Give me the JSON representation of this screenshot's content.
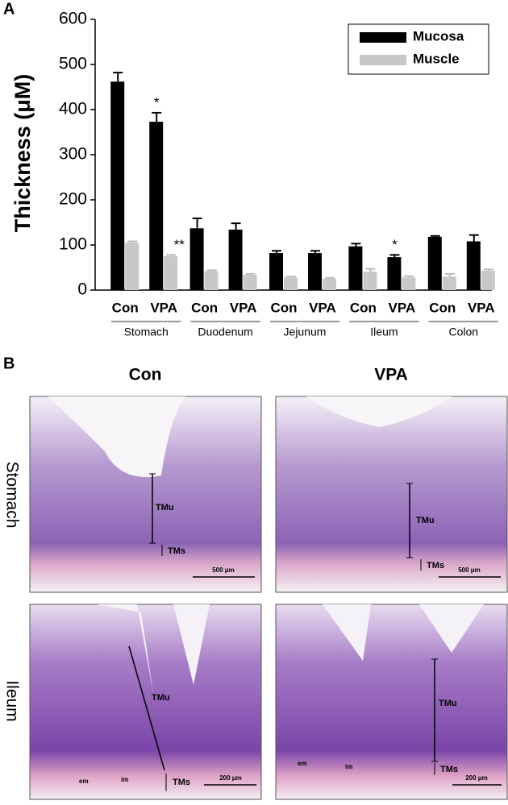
{
  "panel_a_label": "A",
  "panel_b_label": "B",
  "chart_data": {
    "type": "bar",
    "ylabel": "Thickness (μM)",
    "categories": [
      "Con",
      "VPA",
      "Con",
      "VPA",
      "Con",
      "VPA",
      "Con",
      "VPA",
      "Con",
      "VPA"
    ],
    "groups": [
      "Stomach",
      "Duodenum",
      "Jejunum",
      "Ileum",
      "Colon"
    ],
    "series": [
      {
        "name": "Mucosa",
        "color": "#000000",
        "values": [
          462,
          373,
          137,
          134,
          82,
          82,
          97,
          73,
          118,
          108
        ],
        "errors": [
          20,
          20,
          22,
          14,
          5,
          5,
          6,
          5,
          2,
          14
        ],
        "marks": [
          null,
          "*",
          null,
          null,
          null,
          null,
          null,
          "*",
          null,
          null
        ]
      },
      {
        "name": "Muscle",
        "color": "#c8c8c8",
        "values": [
          105,
          75,
          42,
          34,
          28,
          25,
          41,
          28,
          30,
          43
        ],
        "errors": [
          3,
          3,
          2,
          2,
          2,
          2,
          6,
          3,
          6,
          3
        ],
        "marks": [
          null,
          "**",
          null,
          null,
          null,
          null,
          null,
          null,
          null,
          null
        ]
      }
    ],
    "ylim": [
      0,
      600
    ],
    "yticks": [
      0,
      100,
      200,
      300,
      400,
      500,
      600
    ],
    "legend": "upper right"
  },
  "histology": {
    "columns": [
      "Con",
      "VPA"
    ],
    "rows": [
      "Stomach",
      "Ileum"
    ],
    "images": [
      {
        "labels": [
          "TMu",
          "TMs",
          "500 μm"
        ]
      },
      {
        "labels": [
          "TMu",
          "TMs",
          "500 μm"
        ]
      },
      {
        "labels": [
          "TMu",
          "TMs",
          "200 μm",
          "em",
          "im"
        ]
      },
      {
        "labels": [
          "TMu",
          "TMs",
          "200 μm",
          "em",
          "im"
        ]
      }
    ]
  }
}
